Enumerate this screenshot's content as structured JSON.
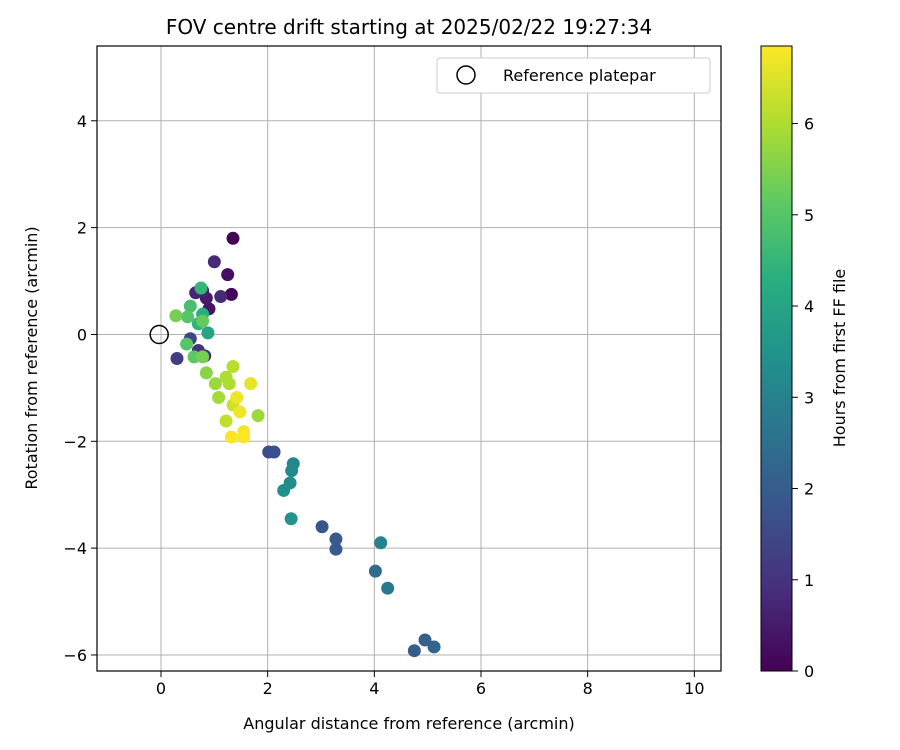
{
  "chart_data": {
    "type": "scatter",
    "title": "FOV centre drift starting at 2025/02/22 19:27:34",
    "xlabel": "Angular distance from reference (arcmin)",
    "ylabel": "Rotation from reference (arcmin)",
    "xlim": [
      -1.2,
      10.5
    ],
    "ylim": [
      -6.3,
      5.4
    ],
    "xticks": [
      0,
      2,
      4,
      6,
      8,
      10
    ],
    "yticks": [
      -6,
      -4,
      -2,
      0,
      2,
      4
    ],
    "grid": true,
    "legend": {
      "placement": "top-right",
      "entries": [
        "Reference platepar"
      ]
    },
    "reference_point": {
      "x": 0,
      "y": 0,
      "label": "Reference platepar"
    },
    "colorbar": {
      "label": "Hours from first FF file",
      "colormap": "viridis",
      "range": [
        0,
        6.85
      ],
      "ticks": [
        0,
        1,
        2,
        3,
        4,
        5,
        6
      ]
    },
    "points": [
      {
        "x": 1.35,
        "y": 1.8,
        "h": 0.05
      },
      {
        "x": 1.32,
        "y": 0.75,
        "h": 0.1
      },
      {
        "x": 1.25,
        "y": 1.12,
        "h": 0.3
      },
      {
        "x": 0.9,
        "y": 0.48,
        "h": 0.4
      },
      {
        "x": 0.85,
        "y": 0.68,
        "h": 0.5
      },
      {
        "x": 0.78,
        "y": 0.82,
        "h": 0.6
      },
      {
        "x": 0.65,
        "y": 0.78,
        "h": 0.7
      },
      {
        "x": 1.0,
        "y": 1.36,
        "h": 0.8
      },
      {
        "x": 1.12,
        "y": 0.71,
        "h": 0.8
      },
      {
        "x": 0.82,
        "y": -0.4,
        "h": 0.9
      },
      {
        "x": 0.7,
        "y": -0.3,
        "h": 1.0
      },
      {
        "x": 0.3,
        "y": -0.45,
        "h": 1.2
      },
      {
        "x": 0.55,
        "y": -0.08,
        "h": 1.4
      },
      {
        "x": 2.02,
        "y": -2.2,
        "h": 1.6
      },
      {
        "x": 2.12,
        "y": -2.2,
        "h": 1.7
      },
      {
        "x": 3.02,
        "y": -3.6,
        "h": 1.8
      },
      {
        "x": 3.28,
        "y": -3.83,
        "h": 1.9
      },
      {
        "x": 3.28,
        "y": -4.02,
        "h": 1.95
      },
      {
        "x": 4.75,
        "y": -5.92,
        "h": 2.0
      },
      {
        "x": 4.95,
        "y": -5.72,
        "h": 2.1
      },
      {
        "x": 5.12,
        "y": -5.85,
        "h": 2.2
      },
      {
        "x": 4.02,
        "y": -4.43,
        "h": 2.4
      },
      {
        "x": 4.25,
        "y": -4.75,
        "h": 2.7
      },
      {
        "x": 4.12,
        "y": -3.9,
        "h": 3.0
      },
      {
        "x": 2.48,
        "y": -2.42,
        "h": 3.1
      },
      {
        "x": 2.45,
        "y": -2.55,
        "h": 3.2
      },
      {
        "x": 2.42,
        "y": -2.78,
        "h": 3.3
      },
      {
        "x": 2.3,
        "y": -2.92,
        "h": 3.4
      },
      {
        "x": 2.44,
        "y": -3.45,
        "h": 3.5
      },
      {
        "x": 0.88,
        "y": 0.03,
        "h": 4.0
      },
      {
        "x": 0.78,
        "y": 0.38,
        "h": 4.3
      },
      {
        "x": 0.7,
        "y": 0.2,
        "h": 4.4
      },
      {
        "x": 0.75,
        "y": 0.87,
        "h": 4.5
      },
      {
        "x": 0.55,
        "y": 0.53,
        "h": 4.8
      },
      {
        "x": 0.5,
        "y": 0.33,
        "h": 5.0
      },
      {
        "x": 0.48,
        "y": -0.18,
        "h": 5.0
      },
      {
        "x": 0.62,
        "y": -0.42,
        "h": 5.1
      },
      {
        "x": 0.78,
        "y": 0.25,
        "h": 5.2
      },
      {
        "x": 0.28,
        "y": 0.35,
        "h": 5.4
      },
      {
        "x": 0.78,
        "y": -0.42,
        "h": 5.4
      },
      {
        "x": 0.85,
        "y": -0.72,
        "h": 5.6
      },
      {
        "x": 1.02,
        "y": -0.92,
        "h": 5.8
      },
      {
        "x": 1.82,
        "y": -1.52,
        "h": 5.8
      },
      {
        "x": 1.08,
        "y": -1.18,
        "h": 5.9
      },
      {
        "x": 1.28,
        "y": -0.92,
        "h": 6.0
      },
      {
        "x": 1.22,
        "y": -0.8,
        "h": 6.0
      },
      {
        "x": 1.35,
        "y": -0.6,
        "h": 6.1
      },
      {
        "x": 1.22,
        "y": -1.62,
        "h": 6.2
      },
      {
        "x": 1.35,
        "y": -1.32,
        "h": 6.3
      },
      {
        "x": 1.68,
        "y": -0.92,
        "h": 6.6
      },
      {
        "x": 1.42,
        "y": -1.18,
        "h": 6.7
      },
      {
        "x": 1.48,
        "y": -1.45,
        "h": 6.7
      },
      {
        "x": 1.55,
        "y": -1.82,
        "h": 6.75
      },
      {
        "x": 1.32,
        "y": -1.92,
        "h": 6.8
      },
      {
        "x": 1.55,
        "y": -1.92,
        "h": 6.85
      }
    ]
  }
}
